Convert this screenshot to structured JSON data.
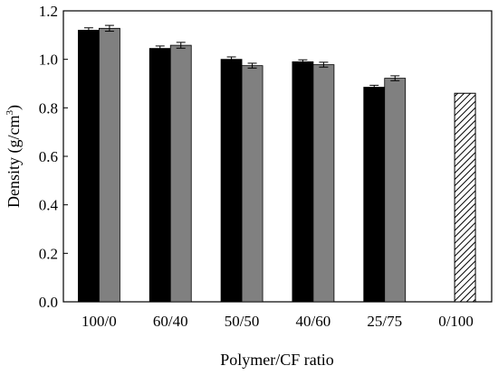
{
  "chart_data": {
    "type": "bar",
    "title": "",
    "xlabel": "Polymer/CF ratio",
    "ylabel_parts": {
      "main": "Density (g/cm",
      "sup": "3",
      "close": ")"
    },
    "ylim": [
      0,
      1.2
    ],
    "yticks": [
      "0.0",
      "0.2",
      "0.4",
      "0.6",
      "0.8",
      "1.0",
      "1.2"
    ],
    "categories": [
      "100/0",
      "60/40",
      "50/50",
      "40/60",
      "25/75",
      "0/100"
    ],
    "series": [
      {
        "color": "#000000",
        "values": [
          1.12,
          1.045,
          1.0,
          0.99,
          0.885,
          null
        ],
        "errors": [
          0.01,
          0.01,
          0.01,
          0.008,
          0.008,
          null
        ]
      },
      {
        "color": "#808080",
        "values": [
          1.128,
          1.058,
          0.974,
          0.978,
          0.922,
          null
        ],
        "errors": [
          0.012,
          0.012,
          0.01,
          0.01,
          0.01,
          null
        ]
      }
    ],
    "reference_bar": {
      "category": "0/100",
      "value": 0.86,
      "pattern": "diagonal-hatch"
    },
    "grid": false,
    "legend": false
  }
}
